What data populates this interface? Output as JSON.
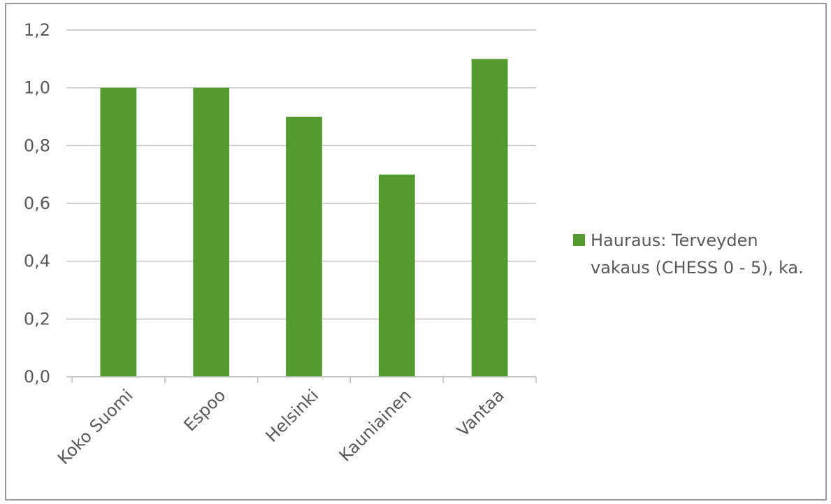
{
  "chart_data": {
    "type": "bar",
    "categories": [
      "Koko Suomi",
      "Espoo",
      "Helsinki",
      "Kauniainen",
      "Vantaa"
    ],
    "series": [
      {
        "name": "Hauraus: Terveyden vakaus (CHESS 0 - 5), ka.",
        "values": [
          1.0,
          1.0,
          0.9,
          0.7,
          1.1
        ],
        "color": "#559a2f"
      }
    ],
    "ylim": [
      0,
      1.2
    ],
    "yticks": [
      "0,0",
      "0,2",
      "0,4",
      "0,6",
      "0,8",
      "1,0",
      "1,2"
    ],
    "grid": true,
    "legend_position": "right"
  },
  "legend": {
    "line1": "Hauraus: Terveyden",
    "line2": "vakaus (CHESS 0 - 5), ka."
  }
}
